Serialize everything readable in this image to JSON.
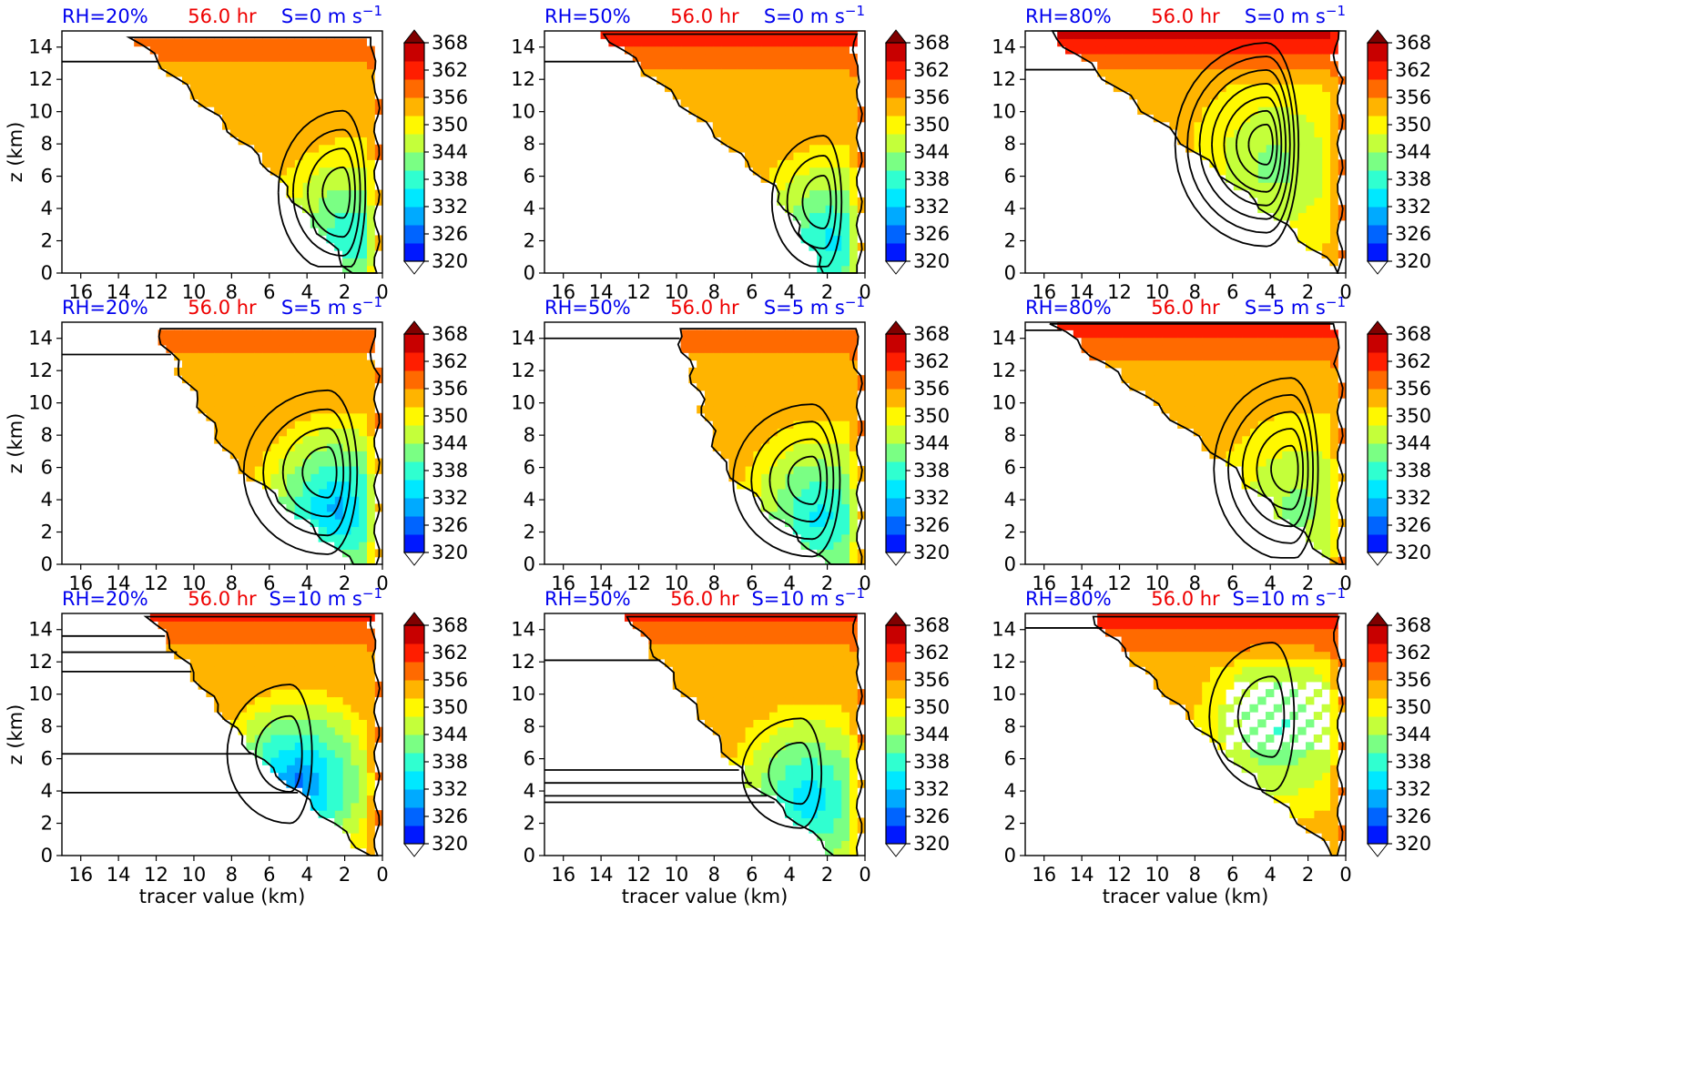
{
  "figure": {
    "colors": {
      "title_blue": "#0000ee",
      "title_red": "#ee0000",
      "contour": "#000000",
      "axis": "#000000"
    },
    "colorbar": {
      "ticks": [
        "368",
        "362",
        "356",
        "350",
        "344",
        "338",
        "332",
        "326",
        "320"
      ],
      "colors": [
        "#000083",
        "#0018ff",
        "#0064ff",
        "#00aaff",
        "#00e8ff",
        "#30ffd0",
        "#7aff84",
        "#c4ff3a",
        "#fff800",
        "#ffb400",
        "#ff6a00",
        "#ff1e00",
        "#c80000",
        "#800000"
      ],
      "extend": "both",
      "min": 320,
      "max": 368
    },
    "axes_common": {
      "xticks": [
        "16",
        "14",
        "12",
        "10",
        "8",
        "6",
        "4",
        "2",
        "0"
      ],
      "yticks": [
        "0",
        "2",
        "4",
        "6",
        "8",
        "10",
        "12",
        "14"
      ],
      "ylabel": "z (km)",
      "xlabel": "tracer value (km)"
    },
    "panels": [
      {
        "rh": "RH=20%",
        "time": "56.0 hr",
        "shear": "S=0 m s",
        "exp": "−1"
      },
      {
        "rh": "RH=50%",
        "time": "56.0 hr",
        "shear": "S=0 m s",
        "exp": "−1"
      },
      {
        "rh": "RH=80%",
        "time": "56.0 hr",
        "shear": "S=0 m s",
        "exp": "−1"
      },
      {
        "rh": "RH=20%",
        "time": "56.0 hr",
        "shear": "S=5 m s",
        "exp": "−1"
      },
      {
        "rh": "RH=50%",
        "time": "56.0 hr",
        "shear": "S=5 m s",
        "exp": "−1"
      },
      {
        "rh": "RH=80%",
        "time": "56.0 hr",
        "shear": "S=5 m s",
        "exp": "−1"
      },
      {
        "rh": "RH=20%",
        "time": "56.0 hr",
        "shear": "S=10 m s",
        "exp": "−1"
      },
      {
        "rh": "RH=50%",
        "time": "56.0 hr",
        "shear": "S=10 m s",
        "exp": "−1"
      },
      {
        "rh": "RH=80%",
        "time": "56.0 hr",
        "shear": "S=10 m s",
        "exp": "−1"
      }
    ]
  },
  "chart_data": [
    {
      "type": "heatmap",
      "x_axis": "tracer value (km)",
      "xlim": [
        17,
        0
      ],
      "ylim": [
        0,
        15
      ],
      "rh": 20,
      "shear": 0,
      "time_hr": 56.0,
      "min_theta_k": 336,
      "top_theta_k": 362,
      "contour_levels": 4
    },
    {
      "type": "heatmap",
      "x_axis": "tracer value (km)",
      "xlim": [
        17,
        0
      ],
      "ylim": [
        0,
        15
      ],
      "rh": 50,
      "shear": 0,
      "time_hr": 56.0,
      "min_theta_k": 334,
      "top_theta_k": 364,
      "contour_levels": 3
    },
    {
      "type": "heatmap",
      "x_axis": "tracer value (km)",
      "xlim": [
        17,
        0
      ],
      "ylim": [
        0,
        15
      ],
      "rh": 80,
      "shear": 0,
      "time_hr": 56.0,
      "min_theta_k": 342,
      "top_theta_k": 366,
      "contour_levels": 7
    },
    {
      "type": "heatmap",
      "x_axis": "tracer value (km)",
      "xlim": [
        17,
        0
      ],
      "ylim": [
        0,
        15
      ],
      "rh": 20,
      "shear": 5,
      "time_hr": 56.0,
      "min_theta_k": 330,
      "top_theta_k": 360,
      "contour_levels": 4
    },
    {
      "type": "heatmap",
      "x_axis": "tracer value (km)",
      "xlim": [
        17,
        0
      ],
      "ylim": [
        0,
        15
      ],
      "rh": 50,
      "shear": 5,
      "time_hr": 56.0,
      "min_theta_k": 334,
      "top_theta_k": 362,
      "contour_levels": 4
    },
    {
      "type": "heatmap",
      "x_axis": "tracer value (km)",
      "xlim": [
        17,
        0
      ],
      "ylim": [
        0,
        15
      ],
      "rh": 80,
      "shear": 5,
      "time_hr": 56.0,
      "min_theta_k": 342,
      "top_theta_k": 364,
      "contour_levels": 5
    },
    {
      "type": "heatmap",
      "x_axis": "tracer value (km)",
      "xlim": [
        17,
        0
      ],
      "ylim": [
        0,
        15
      ],
      "rh": 20,
      "shear": 10,
      "time_hr": 56.0,
      "min_theta_k": 326,
      "top_theta_k": 362,
      "contour_levels": 2
    },
    {
      "type": "heatmap",
      "x_axis": "tracer value (km)",
      "xlim": [
        17,
        0
      ],
      "ylim": [
        0,
        15
      ],
      "rh": 50,
      "shear": 10,
      "time_hr": 56.0,
      "min_theta_k": 332,
      "top_theta_k": 362,
      "contour_levels": 2
    },
    {
      "type": "heatmap",
      "x_axis": "tracer value (km)",
      "xlim": [
        17,
        0
      ],
      "ylim": [
        0,
        15
      ],
      "rh": 80,
      "shear": 10,
      "time_hr": 56.0,
      "min_theta_k": 338,
      "top_theta_k": 364,
      "contour_levels": 2
    }
  ]
}
